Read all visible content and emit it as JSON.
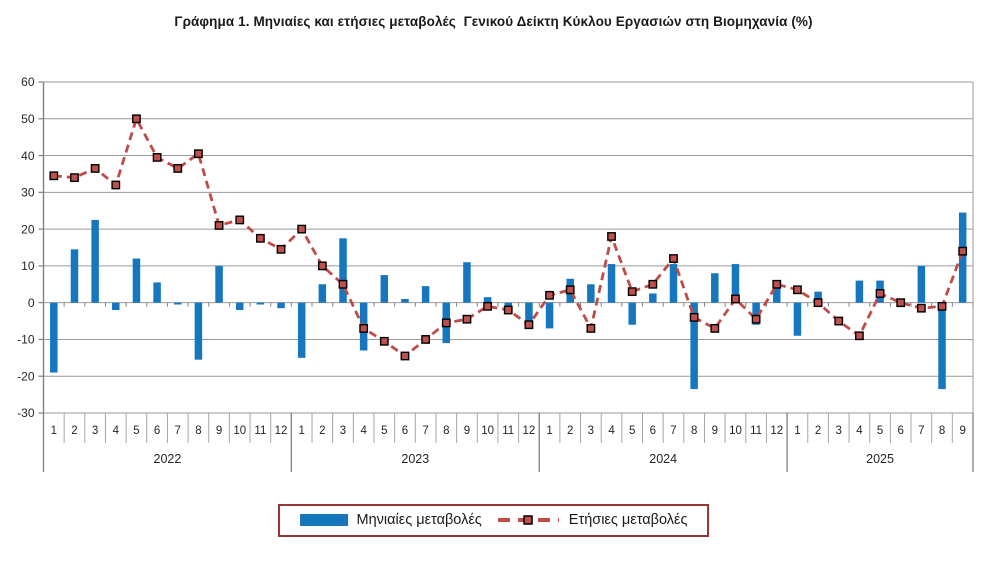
{
  "title": "Γράφημα 1. Μηνιαίες και ετήσιες μεταβολές  Γενικού Δείκτη Κύκλου Εργασιών στη Βιομηχανία (%)",
  "chart_data": {
    "type": "combo-bar-line",
    "title": "Γράφημα 1. Μηνιαίες και ετήσιες μεταβολές Γενικού Δείκτη Κύκλου Εργασιών στη Βιομηχανία (%)",
    "ylabel": "",
    "xlabel": "",
    "y_axis": {
      "min": -30,
      "max": 60,
      "step": 10,
      "tick_labels": [
        "60",
        "50",
        "40",
        "30",
        "20",
        "10",
        "0",
        "-10",
        "-20",
        "-30"
      ]
    },
    "grid": true,
    "legend_position": "bottom",
    "x_axis_groups": [
      {
        "year": "2022",
        "months": [
          "1",
          "2",
          "3",
          "4",
          "5",
          "6",
          "7",
          "8",
          "9",
          "10",
          "11",
          "12"
        ]
      },
      {
        "year": "2023",
        "months": [
          "1",
          "2",
          "3",
          "4",
          "5",
          "6",
          "7",
          "8",
          "9",
          "10",
          "11",
          "12"
        ]
      },
      {
        "year": "2024",
        "months": [
          "1",
          "2",
          "3",
          "4",
          "5",
          "6",
          "7",
          "8",
          "9",
          "10",
          "11",
          "12"
        ]
      },
      {
        "year": "2025",
        "months": [
          "1",
          "2",
          "3",
          "4",
          "5",
          "6",
          "7",
          "8",
          "9"
        ]
      }
    ],
    "series": [
      {
        "name": "Μηνιαίες μεταβολές",
        "type": "bar",
        "color": "#1777BE",
        "values": [
          -19,
          14.5,
          22.5,
          -2,
          12,
          5.5,
          -0.5,
          -15.5,
          10,
          -2,
          -0.5,
          -1.5,
          -15,
          5,
          17.5,
          -13,
          7.5,
          1,
          4.5,
          -11,
          11,
          1.5,
          -1.5,
          -6,
          -7,
          6.5,
          5,
          10.5,
          -6,
          2.5,
          10.5,
          -23.5,
          8,
          10.5,
          -6,
          4,
          -9,
          3,
          0,
          6,
          6,
          0,
          10,
          -23.5,
          24.5
        ]
      },
      {
        "name": "Ετήσιες μεταβολές",
        "type": "line",
        "style": "dashed",
        "marker": "square",
        "color": "#BE4C48",
        "marker_fill": "#C0504D",
        "values": [
          34.5,
          34,
          36.5,
          32,
          50,
          39.5,
          36.5,
          40.5,
          21,
          22.5,
          17.5,
          14.5,
          20,
          10,
          5,
          -7,
          -10.5,
          -14.5,
          -10,
          -5.5,
          -4.5,
          -1,
          -2,
          -6,
          2,
          3.5,
          -7,
          18,
          3,
          5,
          12,
          -4,
          -7,
          1,
          -4.5,
          5,
          3.5,
          0,
          -5,
          -9,
          2.5,
          0,
          -1.5,
          -1,
          14
        ]
      }
    ]
  },
  "colors": {
    "bar": "#1777BE",
    "line": "#BE4C48",
    "grid": "#9a9a9a",
    "axis": "#808080",
    "legend_border": "#963634"
  }
}
